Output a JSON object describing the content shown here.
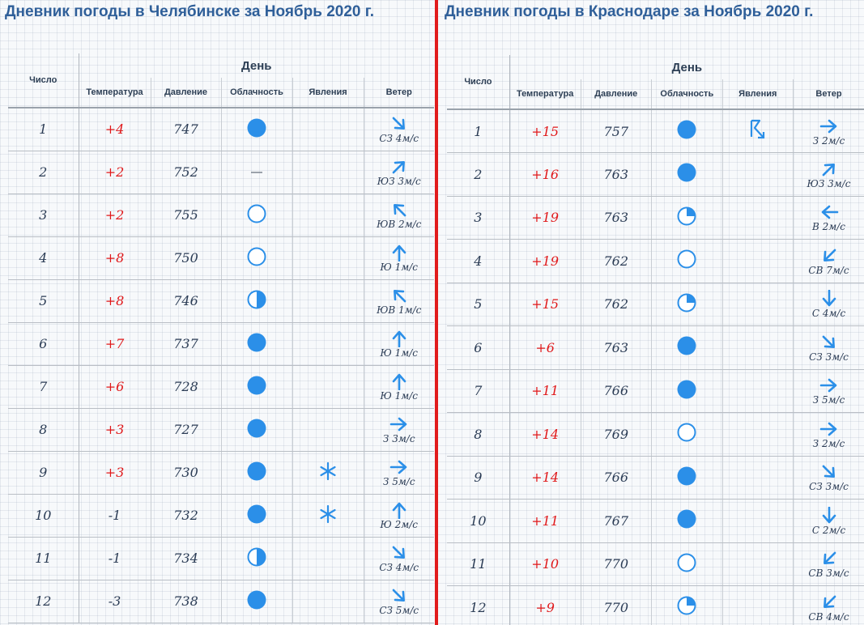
{
  "colors": {
    "accent": "#2f5f99",
    "icon": "#2b8fe8",
    "temperature": "#e0181a",
    "divider": "#e11c1c"
  },
  "diaries": [
    {
      "title": "Дневник погоды в Челябинске за Ноябрь 2020 г.",
      "day_header": "День",
      "headers": {
        "number": "Число",
        "temperature": "Температура",
        "pressure": "Давление",
        "cloudiness": "Облачность",
        "phenomena": "Явления",
        "wind": "Ветер"
      },
      "rows": [
        {
          "day": "1",
          "temp": "+4",
          "pressure": "747",
          "cloud": "cloudy-icon",
          "phenomenon": "",
          "wind_dir": "se",
          "wind": "СЗ 4м/с"
        },
        {
          "day": "2",
          "temp": "+2",
          "pressure": "752",
          "cloud": "fog-icon",
          "phenomenon": "",
          "wind_dir": "ne",
          "wind": "ЮЗ 3м/с"
        },
        {
          "day": "3",
          "temp": "+2",
          "pressure": "755",
          "cloud": "clear-icon",
          "phenomenon": "",
          "wind_dir": "nw",
          "wind": "ЮВ 2м/с"
        },
        {
          "day": "4",
          "temp": "+8",
          "pressure": "750",
          "cloud": "clear-icon",
          "phenomenon": "",
          "wind_dir": "n",
          "wind": "Ю 1м/с"
        },
        {
          "day": "5",
          "temp": "+8",
          "pressure": "746",
          "cloud": "half-cloudy-icon",
          "phenomenon": "",
          "wind_dir": "nw",
          "wind": "ЮВ 1м/с"
        },
        {
          "day": "6",
          "temp": "+7",
          "pressure": "737",
          "cloud": "cloudy-icon",
          "phenomenon": "",
          "wind_dir": "n",
          "wind": "Ю 1м/с"
        },
        {
          "day": "7",
          "temp": "+6",
          "pressure": "728",
          "cloud": "cloudy-icon",
          "phenomenon": "",
          "wind_dir": "n",
          "wind": "Ю 1м/с"
        },
        {
          "day": "8",
          "temp": "+3",
          "pressure": "727",
          "cloud": "cloudy-icon",
          "phenomenon": "",
          "wind_dir": "e",
          "wind": "З 3м/с"
        },
        {
          "day": "9",
          "temp": "+3",
          "pressure": "730",
          "cloud": "cloudy-icon",
          "phenomenon": "snow-icon",
          "wind_dir": "e",
          "wind": "З 5м/с"
        },
        {
          "day": "10",
          "temp": "-1",
          "pressure": "732",
          "cloud": "cloudy-icon",
          "phenomenon": "snow-icon",
          "wind_dir": "n",
          "wind": "Ю 2м/с"
        },
        {
          "day": "11",
          "temp": "-1",
          "pressure": "734",
          "cloud": "half-cloudy-icon",
          "phenomenon": "",
          "wind_dir": "se",
          "wind": "СЗ 4м/с"
        },
        {
          "day": "12",
          "temp": "-3",
          "pressure": "738",
          "cloud": "cloudy-icon",
          "phenomenon": "",
          "wind_dir": "se",
          "wind": "СЗ 5м/с"
        }
      ]
    },
    {
      "title": "Дневник погоды в Краснодаре за Ноябрь 2020 г.",
      "day_header": "День",
      "headers": {
        "number": "Число",
        "temperature": "Температура",
        "pressure": "Давление",
        "cloudiness": "Облачность",
        "phenomena": "Явления",
        "wind": "Ветер"
      },
      "rows": [
        {
          "day": "1",
          "temp": "+15",
          "pressure": "757",
          "cloud": "cloudy-icon",
          "phenomenon": "thunderstorm-icon",
          "wind_dir": "e",
          "wind": "З 2м/с"
        },
        {
          "day": "2",
          "temp": "+16",
          "pressure": "763",
          "cloud": "cloudy-icon",
          "phenomenon": "",
          "wind_dir": "ne",
          "wind": "ЮЗ 3м/с"
        },
        {
          "day": "3",
          "temp": "+19",
          "pressure": "763",
          "cloud": "partly-cloudy-icon",
          "phenomenon": "",
          "wind_dir": "w",
          "wind": "В 2м/с"
        },
        {
          "day": "4",
          "temp": "+19",
          "pressure": "762",
          "cloud": "clear-icon",
          "phenomenon": "",
          "wind_dir": "sw",
          "wind": "СВ 7м/с"
        },
        {
          "day": "5",
          "temp": "+15",
          "pressure": "762",
          "cloud": "partly-cloudy-icon",
          "phenomenon": "",
          "wind_dir": "s",
          "wind": "С 4м/с"
        },
        {
          "day": "6",
          "temp": "+6",
          "pressure": "763",
          "cloud": "cloudy-icon",
          "phenomenon": "",
          "wind_dir": "se",
          "wind": "СЗ 3м/с"
        },
        {
          "day": "7",
          "temp": "+11",
          "pressure": "766",
          "cloud": "cloudy-icon",
          "phenomenon": "",
          "wind_dir": "e",
          "wind": "З 5м/с"
        },
        {
          "day": "8",
          "temp": "+14",
          "pressure": "769",
          "cloud": "clear-icon",
          "phenomenon": "",
          "wind_dir": "e",
          "wind": "З 2м/с"
        },
        {
          "day": "9",
          "temp": "+14",
          "pressure": "766",
          "cloud": "cloudy-icon",
          "phenomenon": "",
          "wind_dir": "se",
          "wind": "СЗ 3м/с"
        },
        {
          "day": "10",
          "temp": "+11",
          "pressure": "767",
          "cloud": "cloudy-icon",
          "phenomenon": "",
          "wind_dir": "s",
          "wind": "С 2м/с"
        },
        {
          "day": "11",
          "temp": "+10",
          "pressure": "770",
          "cloud": "clear-icon",
          "phenomenon": "",
          "wind_dir": "sw",
          "wind": "СВ 3м/с"
        },
        {
          "day": "12",
          "temp": "+9",
          "pressure": "770",
          "cloud": "partly-cloudy-icon",
          "phenomenon": "",
          "wind_dir": "sw",
          "wind": "СВ 4м/с"
        }
      ]
    }
  ]
}
